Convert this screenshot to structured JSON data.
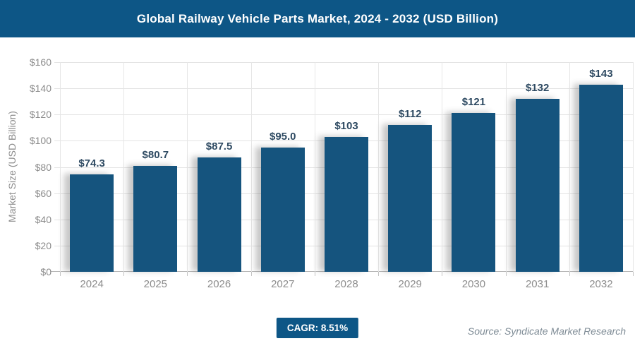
{
  "header": {
    "title": "Global Railway Vehicle Parts Market, 2024 - 2032 (USD Billion)",
    "bg_color": "#0d5686"
  },
  "chart_data": {
    "type": "bar",
    "title": "Global Railway Vehicle Parts Market, 2024 - 2032 (USD Billion)",
    "xlabel": "",
    "ylabel": "Market Size (USD Billion)",
    "categories": [
      "2024",
      "2025",
      "2026",
      "2027",
      "2028",
      "2029",
      "2030",
      "2031",
      "2032"
    ],
    "values": [
      74.3,
      80.7,
      87.5,
      95.0,
      103,
      112,
      121,
      132,
      143
    ],
    "value_labels": [
      "$74.3",
      "$80.7",
      "$87.5",
      "$95.0",
      "$103",
      "$112",
      "$121",
      "$132",
      "$143"
    ],
    "ylim": [
      0,
      160
    ],
    "ytick_values": [
      0,
      20,
      40,
      60,
      80,
      100,
      120,
      140,
      160
    ],
    "ytick_labels": [
      "$0",
      "$20",
      "$40",
      "$60",
      "$80",
      "$100",
      "$120",
      "$140",
      "$160"
    ],
    "grid": true,
    "legend": "none",
    "bar_color": "#15547e",
    "value_label_color": "#2e4a62"
  },
  "footer": {
    "cagr_badge": "CAGR: 8.51%",
    "source": "Source: Syndicate Market Research"
  }
}
